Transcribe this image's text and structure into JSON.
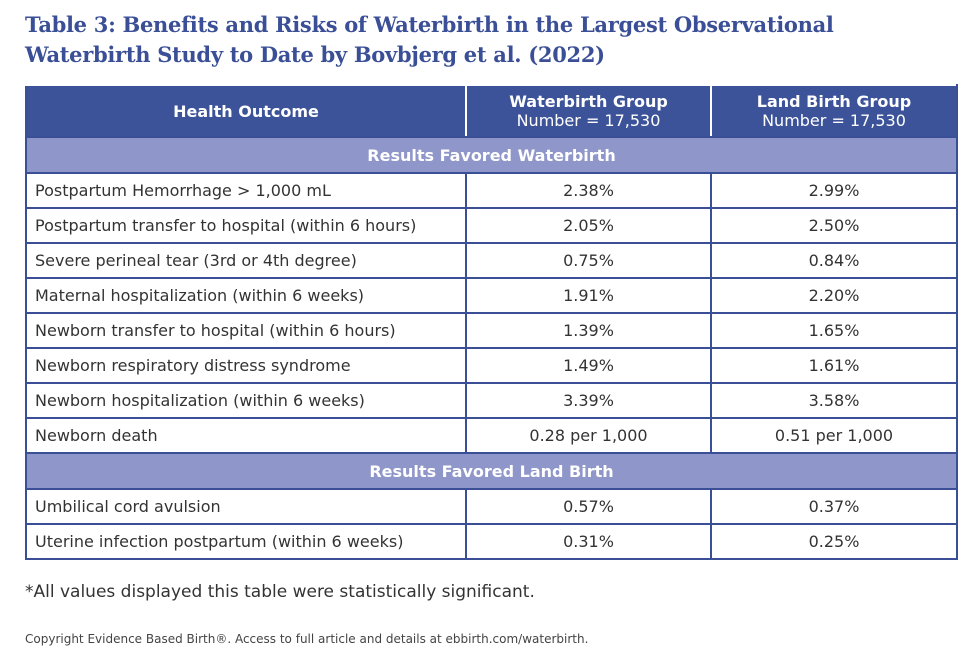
{
  "title": "Table 3: Benefits and Risks of Waterbirth in the Largest Observational Waterbirth Study to Date by Bovbjerg et al. (2022)",
  "table": {
    "columns": [
      {
        "title": "Health Outcome"
      },
      {
        "title": "Waterbirth Group",
        "subtitle": "Number = 17,530"
      },
      {
        "title": "Land Birth Group",
        "subtitle": "Number = 17,530"
      }
    ],
    "sections": [
      {
        "heading": "Results Favored Waterbirth",
        "rows": [
          [
            "Postpartum Hemorrhage > 1,000 mL",
            "2.38%",
            "2.99%"
          ],
          [
            "Postpartum transfer to hospital (within 6 hours)",
            "2.05%",
            "2.50%"
          ],
          [
            "Severe perineal tear (3rd or 4th degree)",
            "0.75%",
            "0.84%"
          ],
          [
            "Maternal hospitalization (within 6 weeks)",
            "1.91%",
            "2.20%"
          ],
          [
            "Newborn transfer to hospital (within 6 hours)",
            "1.39%",
            "1.65%"
          ],
          [
            "Newborn respiratory distress syndrome",
            "1.49%",
            "1.61%"
          ],
          [
            "Newborn hospitalization (within 6 weeks)",
            "3.39%",
            "3.58%"
          ],
          [
            "Newborn death",
            "0.28 per 1,000",
            "0.51 per 1,000"
          ]
        ]
      },
      {
        "heading": "Results Favored Land Birth",
        "rows": [
          [
            "Umbilical cord avulsion",
            "0.57%",
            "0.37%"
          ],
          [
            "Uterine infection postpartum (within 6 weeks)",
            "0.31%",
            "0.25%"
          ]
        ]
      }
    ]
  },
  "footnote": "*All values displayed this table were statistically significant.",
  "copyright": "Copyright Evidence Based Birth®. Access to full article and details at ebbirth.com/waterbirth."
}
